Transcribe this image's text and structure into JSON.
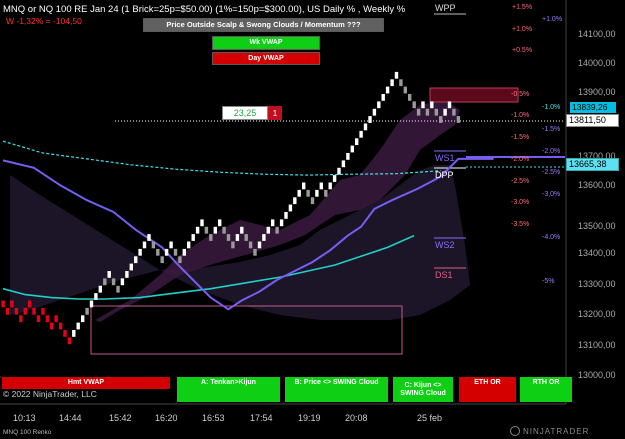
{
  "header": {
    "instrument": "MNQ or NQ 100 RE Jan 24 (1 Brick=25p=$50.00) (1%=150p=$300.00), US Daily % , Weekly %",
    "pnl": "W -1,32% = -104,50",
    "copyright": "© 2022 NinjaTrader, LLC",
    "footer": "MNQ 100 Renko",
    "brand": "NINJATRADER"
  },
  "top_buttons": {
    "banner": "Price Outside Scalp & Swong Clouds / Momentum ???",
    "wk_vwap": "Wk VWAP",
    "day_vwap": "Day VWAP"
  },
  "position": {
    "value": "23,25",
    "qty": "1"
  },
  "levels": {
    "wpp": "WPP",
    "ws1": "WS1",
    "dpp": "DPP",
    "ws2": "WS2",
    "ds1": "DS1"
  },
  "daily_pct": [
    "+1.5%",
    "+1.0%",
    "+0.5%",
    "-0.5%",
    "-1.0%",
    "-1.5%",
    "-2.0%",
    "-2.5%",
    "-3.0%",
    "-3.5%"
  ],
  "weekly_pct": [
    "+1.0%",
    "-1.0%",
    "-1.5%",
    "-2.0%",
    "-2.5%",
    "-3,0%",
    "-4.0%",
    "-5%"
  ],
  "price_axis": [
    "14100,00",
    "14000,00",
    "13900,00",
    "13800,00",
    "13700,00",
    "13600,00",
    "13500,00",
    "13400,00",
    "13300,00",
    "13200,00",
    "13100,00",
    "13000,00"
  ],
  "price_tags": [
    {
      "text": "13811,50",
      "bg": "#ffffff",
      "fg": "#000000"
    },
    {
      "text": "13665,38",
      "bg": "#5ee0f0",
      "fg": "#000000"
    },
    {
      "text": "13839,26",
      "bg": "#00bfe0",
      "fg": "#000000"
    }
  ],
  "time_axis": [
    "10:13",
    "14:44",
    "15:42",
    "16:20",
    "16:53",
    "17:54",
    "19:19",
    "20:08",
    "25 feb"
  ],
  "bottom_buttons": [
    {
      "label": "Hmt VWAP",
      "color": "#d40000"
    },
    {
      "label": "A: Tenkan>Kijun",
      "color": "#0fcf14"
    },
    {
      "label": "B: Price <> SWING Cloud",
      "color": "#0fcf14"
    },
    {
      "label": "C: Kijun <> SWING Cloud",
      "color": "#0fcf14"
    },
    {
      "label": "ETH OR",
      "color": "#d40000"
    },
    {
      "label": "RTH OR",
      "color": "#0fcf14"
    }
  ],
  "colors": {
    "background": "#000000",
    "brick_up": "#ffffff",
    "brick_down": "#9a9a9a",
    "brick_low": "#e8001a",
    "swing_cloud": "#1c1528",
    "scalp_cloud": "#4a1d4e",
    "kijun_line": "#7a5cf0",
    "tenkan_line": "#1fd0c8",
    "wk_vwap_line": "#40e0e8",
    "box_outline": "#c05a8a"
  },
  "chart_data": {
    "type": "renko",
    "price_axis_range": [
      12960,
      14180
    ],
    "brick_size": 25,
    "last_price": 13811.5,
    "bricks": [
      [
        1,
        13200,
        "r"
      ],
      [
        2,
        13175,
        "r"
      ],
      [
        3,
        13200,
        "r"
      ],
      [
        4,
        13175,
        "r"
      ],
      [
        5,
        13150,
        "r"
      ],
      [
        6,
        13175,
        "r"
      ],
      [
        7,
        13200,
        "r"
      ],
      [
        8,
        13175,
        "r"
      ],
      [
        9,
        13150,
        "r"
      ],
      [
        10,
        13175,
        "r"
      ],
      [
        11,
        13150,
        "r"
      ],
      [
        12,
        13125,
        "r"
      ],
      [
        13,
        13150,
        "r"
      ],
      [
        14,
        13125,
        "r"
      ],
      [
        15,
        13100,
        "r"
      ],
      [
        16,
        13075,
        "r"
      ],
      [
        17,
        13100,
        "w"
      ],
      [
        18,
        13125,
        "w"
      ],
      [
        19,
        13150,
        "w"
      ],
      [
        20,
        13175,
        "g"
      ],
      [
        21,
        13200,
        "w"
      ],
      [
        22,
        13225,
        "w"
      ],
      [
        23,
        13250,
        "w"
      ],
      [
        24,
        13275,
        "g"
      ],
      [
        25,
        13300,
        "w"
      ],
      [
        26,
        13275,
        "g"
      ],
      [
        27,
        13250,
        "g"
      ],
      [
        28,
        13275,
        "w"
      ],
      [
        29,
        13300,
        "w"
      ],
      [
        30,
        13325,
        "w"
      ],
      [
        31,
        13350,
        "w"
      ],
      [
        32,
        13375,
        "w"
      ],
      [
        33,
        13400,
        "w"
      ],
      [
        34,
        13425,
        "w"
      ],
      [
        35,
        13400,
        "g"
      ],
      [
        36,
        13375,
        "g"
      ],
      [
        37,
        13350,
        "g"
      ],
      [
        38,
        13375,
        "w"
      ],
      [
        39,
        13400,
        "w"
      ],
      [
        40,
        13375,
        "g"
      ],
      [
        41,
        13350,
        "g"
      ],
      [
        42,
        13375,
        "w"
      ],
      [
        43,
        13400,
        "w"
      ],
      [
        44,
        13425,
        "w"
      ],
      [
        45,
        13450,
        "w"
      ],
      [
        46,
        13475,
        "w"
      ],
      [
        47,
        13450,
        "g"
      ],
      [
        48,
        13425,
        "g"
      ],
      [
        49,
        13450,
        "w"
      ],
      [
        50,
        13475,
        "w"
      ],
      [
        51,
        13450,
        "g"
      ],
      [
        52,
        13425,
        "g"
      ],
      [
        53,
        13400,
        "g"
      ],
      [
        54,
        13425,
        "w"
      ],
      [
        55,
        13450,
        "w"
      ],
      [
        56,
        13425,
        "g"
      ],
      [
        57,
        13400,
        "g"
      ],
      [
        58,
        13375,
        "g"
      ],
      [
        59,
        13400,
        "w"
      ],
      [
        60,
        13425,
        "w"
      ],
      [
        61,
        13450,
        "w"
      ],
      [
        62,
        13475,
        "w"
      ],
      [
        63,
        13450,
        "g"
      ],
      [
        64,
        13475,
        "w"
      ],
      [
        65,
        13500,
        "w"
      ],
      [
        66,
        13525,
        "w"
      ],
      [
        67,
        13550,
        "w"
      ],
      [
        68,
        13575,
        "w"
      ],
      [
        69,
        13600,
        "w"
      ],
      [
        70,
        13575,
        "g"
      ],
      [
        71,
        13550,
        "g"
      ],
      [
        72,
        13575,
        "w"
      ],
      [
        73,
        13600,
        "w"
      ],
      [
        74,
        13575,
        "g"
      ],
      [
        75,
        13600,
        "w"
      ],
      [
        76,
        13625,
        "w"
      ],
      [
        77,
        13650,
        "w"
      ],
      [
        78,
        13675,
        "w"
      ],
      [
        79,
        13700,
        "w"
      ],
      [
        80,
        13725,
        "w"
      ],
      [
        81,
        13750,
        "w"
      ],
      [
        82,
        13775,
        "w"
      ],
      [
        83,
        13800,
        "w"
      ],
      [
        84,
        13825,
        "w"
      ],
      [
        85,
        13850,
        "w"
      ],
      [
        86,
        13875,
        "w"
      ],
      [
        87,
        13900,
        "w"
      ],
      [
        88,
        13925,
        "w"
      ],
      [
        89,
        13950,
        "w"
      ],
      [
        90,
        13975,
        "w"
      ],
      [
        91,
        13950,
        "g"
      ],
      [
        92,
        13925,
        "g"
      ],
      [
        93,
        13900,
        "g"
      ],
      [
        94,
        13875,
        "g"
      ],
      [
        95,
        13850,
        "g"
      ],
      [
        96,
        13875,
        "w"
      ],
      [
        97,
        13850,
        "g"
      ],
      [
        98,
        13875,
        "w"
      ],
      [
        99,
        13850,
        "g"
      ],
      [
        100,
        13825,
        "g"
      ],
      [
        101,
        13850,
        "w"
      ],
      [
        102,
        13875,
        "w"
      ],
      [
        103,
        13850,
        "g"
      ],
      [
        104,
        13825,
        "g"
      ]
    ],
    "kijun": [
      [
        1,
        13675
      ],
      [
        8,
        13650
      ],
      [
        14,
        13590
      ],
      [
        20,
        13540
      ],
      [
        26,
        13500
      ],
      [
        31,
        13440
      ],
      [
        37,
        13380
      ],
      [
        40,
        13330
      ],
      [
        44,
        13270
      ],
      [
        48,
        13210
      ],
      [
        52,
        13170
      ],
      [
        55,
        13200
      ],
      [
        59,
        13230
      ],
      [
        63,
        13270
      ],
      [
        67,
        13300
      ],
      [
        71,
        13330
      ],
      [
        75,
        13370
      ],
      [
        79,
        13420
      ],
      [
        82,
        13450
      ],
      [
        85,
        13510
      ],
      [
        89,
        13540
      ],
      [
        95,
        13580
      ],
      [
        100,
        13620
      ],
      [
        104,
        13680
      ],
      [
        112,
        13680
      ]
    ],
    "tenkan": [
      [
        1,
        13240
      ],
      [
        6,
        13220
      ],
      [
        12,
        13210
      ],
      [
        18,
        13205
      ],
      [
        24,
        13205
      ],
      [
        32,
        13210
      ],
      [
        40,
        13225
      ],
      [
        48,
        13240
      ],
      [
        56,
        13260
      ],
      [
        64,
        13280
      ],
      [
        70,
        13300
      ],
      [
        76,
        13320
      ],
      [
        82,
        13350
      ],
      [
        88,
        13380
      ],
      [
        94,
        13420
      ]
    ],
    "wk_vwap": [
      [
        1,
        13740
      ],
      [
        10,
        13700
      ],
      [
        20,
        13680
      ],
      [
        30,
        13660
      ],
      [
        40,
        13645
      ],
      [
        50,
        13635
      ],
      [
        60,
        13628
      ],
      [
        70,
        13625
      ],
      [
        80,
        13628
      ],
      [
        90,
        13630
      ],
      [
        100,
        13640
      ]
    ]
  }
}
